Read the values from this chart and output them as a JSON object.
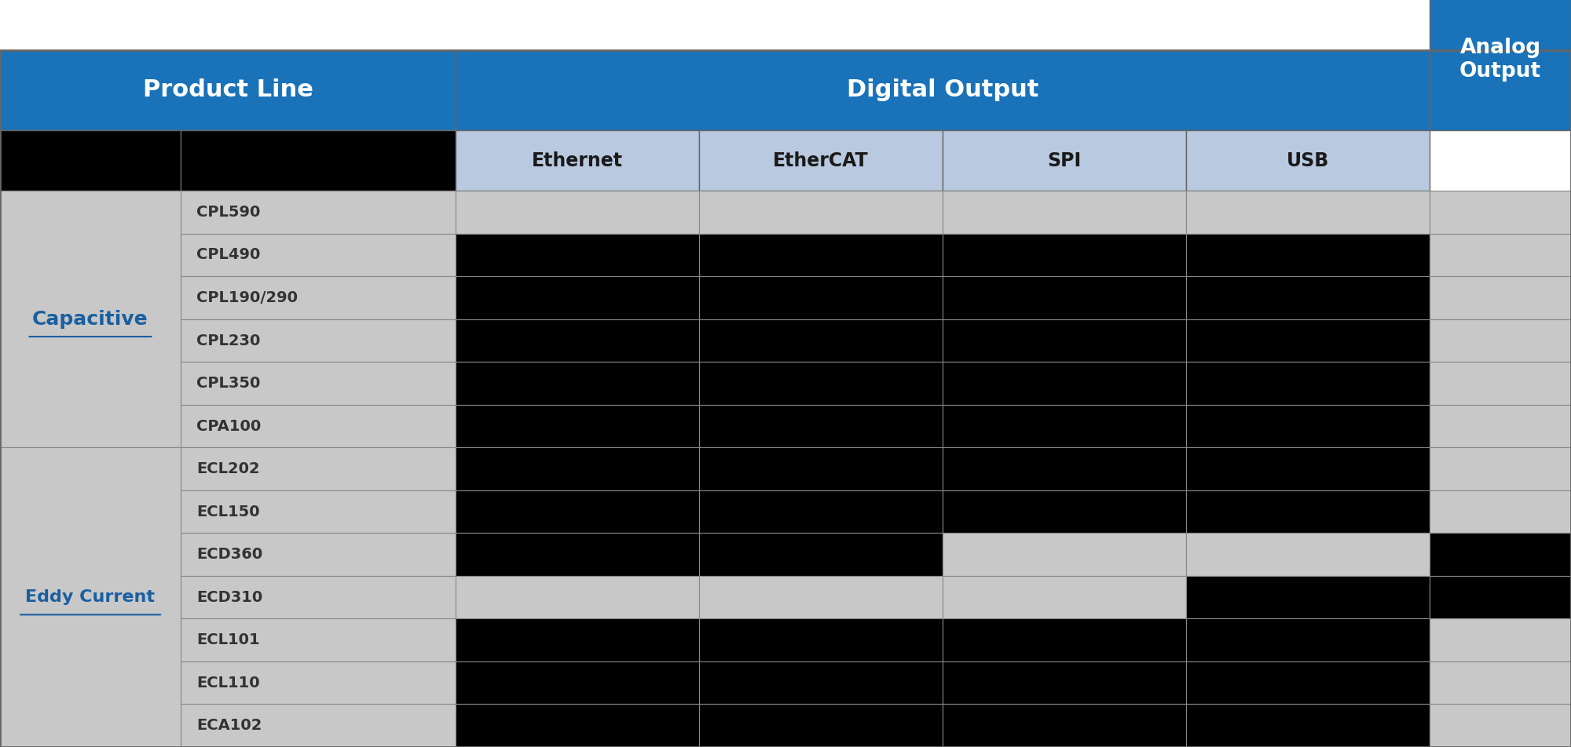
{
  "header1": [
    "Product Line",
    "Digital Output",
    "Analog\nOutput"
  ],
  "header1_cols": [
    2,
    4,
    1
  ],
  "header2": [
    "",
    "",
    "Ethernet",
    "EtherCAT",
    "SPI",
    "USB",
    ""
  ],
  "products": [
    "CPL590",
    "CPL490",
    "CPL190/290",
    "CPL230",
    "CPL350",
    "CPA100",
    "ECL202",
    "ECL150",
    "ECD360",
    "ECD310",
    "ECL101",
    "ECL110",
    "ECA102"
  ],
  "categories": [
    "Capacitive",
    "Eddy Current"
  ],
  "category_rows": [
    6,
    7
  ],
  "cells": [
    [
      0,
      0,
      1,
      1,
      1,
      1,
      1
    ],
    [
      0,
      0,
      0,
      0,
      0,
      0,
      1
    ],
    [
      0,
      0,
      0,
      0,
      0,
      0,
      1
    ],
    [
      0,
      0,
      0,
      0,
      0,
      0,
      1
    ],
    [
      0,
      0,
      0,
      0,
      0,
      0,
      1
    ],
    [
      0,
      0,
      0,
      0,
      0,
      0,
      1
    ],
    [
      0,
      0,
      0,
      0,
      0,
      0,
      1
    ],
    [
      0,
      0,
      0,
      0,
      0,
      0,
      1
    ],
    [
      0,
      0,
      0,
      0,
      1,
      1,
      0
    ],
    [
      0,
      0,
      1,
      1,
      1,
      0,
      0
    ],
    [
      0,
      0,
      0,
      0,
      0,
      0,
      1
    ],
    [
      0,
      0,
      0,
      0,
      0,
      0,
      1
    ],
    [
      0,
      0,
      0,
      0,
      0,
      0,
      1
    ]
  ],
  "blue_header": "#1a72b8",
  "light_blue_subheader": "#b8c9e0",
  "black_cell": "#000000",
  "light_gray_cell": "#c8c8c8",
  "white_text": "#ffffff",
  "dark_text": "#1a1a1a",
  "category_text_color": "#1a5fa0",
  "border_color": "#555555",
  "fig_width": 20.0,
  "fig_height": 9.52
}
